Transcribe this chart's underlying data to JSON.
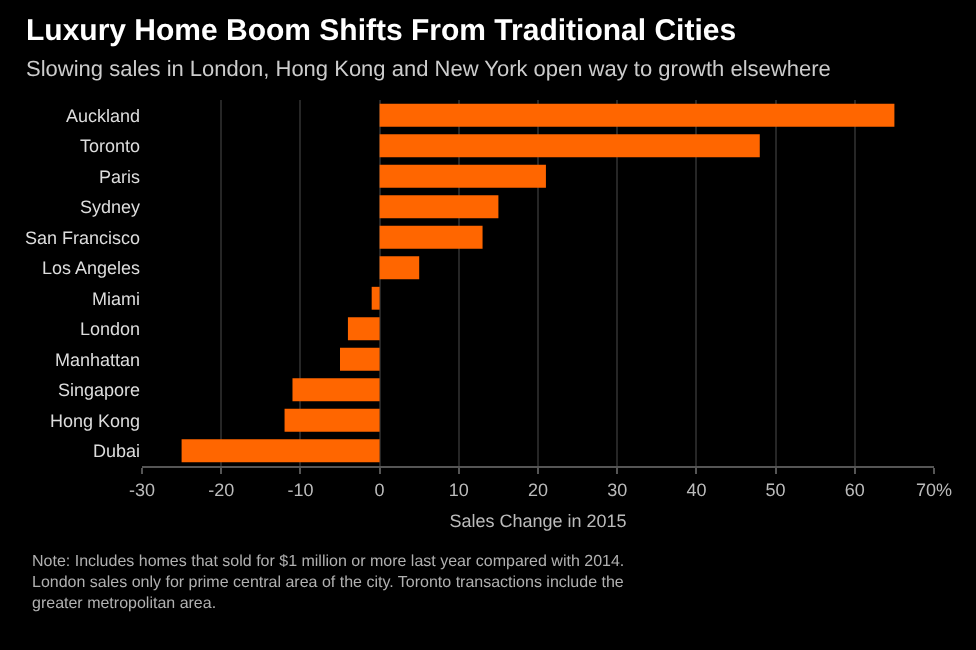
{
  "chart_data": {
    "type": "bar",
    "orientation": "horizontal",
    "title": "Luxury Home Boom Shifts From Traditional Cities",
    "subtitle": "Slowing sales in London, Hong Kong and New York open way to growth elsewhere",
    "xlabel": "Sales Change in 2015",
    "categories": [
      "Auckland",
      "Toronto",
      "Paris",
      "Sydney",
      "San Francisco",
      "Los Angeles",
      "Miami",
      "London",
      "Manhattan",
      "Singapore",
      "Hong Kong",
      "Dubai"
    ],
    "values": [
      65,
      48,
      21,
      15,
      13,
      5,
      -1,
      -4,
      -5,
      -11,
      -12,
      -25
    ],
    "color": "#ff6600",
    "xlim": [
      -30,
      70
    ],
    "xticks": [
      -30,
      -20,
      -10,
      0,
      10,
      20,
      30,
      40,
      50,
      60,
      {
        "value": 70,
        "label": "70%"
      }
    ],
    "grid": "x",
    "annotations": [
      "Note: Includes homes that sold for $1 million or more last year compared with 2014.\nLondon sales only for prime central area of the city. Toronto transactions include the\ngreater metropolitan area."
    ]
  }
}
